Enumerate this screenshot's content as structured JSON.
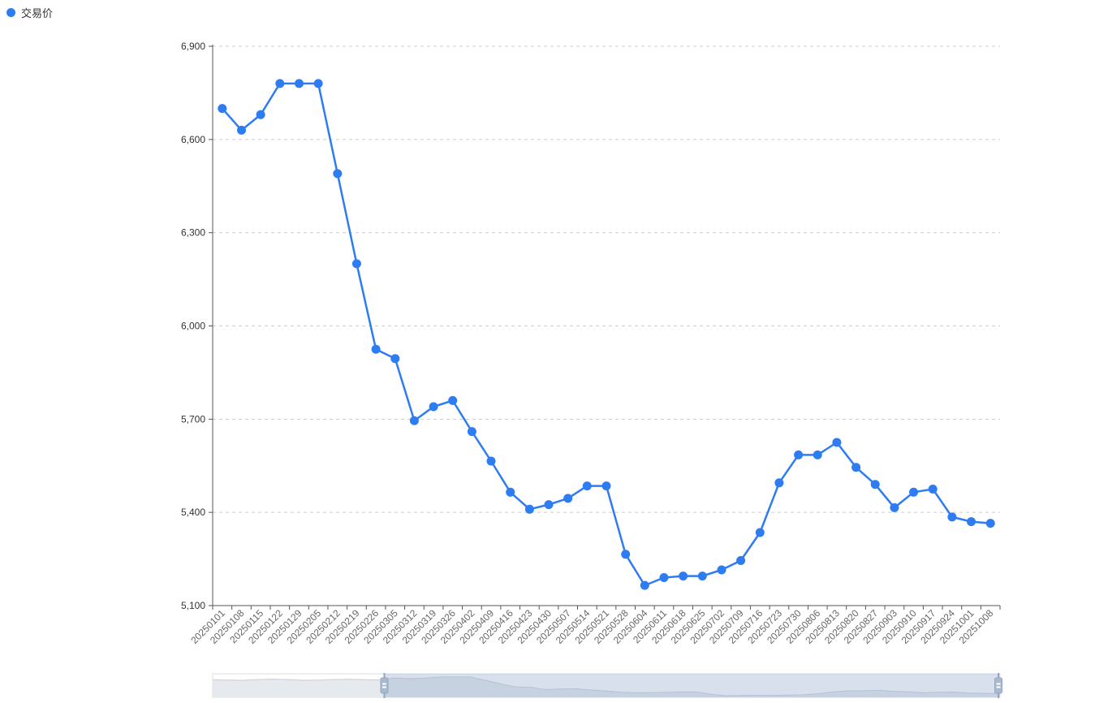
{
  "legend": {
    "label": "交易价",
    "color": "#2e7cf2"
  },
  "chart_data": {
    "type": "line",
    "title": "",
    "xlabel": "",
    "ylabel": "",
    "x": [
      "20250101",
      "20250108",
      "20250115",
      "20250122",
      "20250129",
      "20250205",
      "20250212",
      "20250219",
      "20250226",
      "20250305",
      "20250312",
      "20250319",
      "20250326",
      "20250402",
      "20250409",
      "20250416",
      "20250423",
      "20250430",
      "20250507",
      "20250514",
      "20250521",
      "20250528",
      "20250604",
      "20250611",
      "20250618",
      "20250625",
      "20250702",
      "20250709",
      "20250716",
      "20250723",
      "20250730",
      "20250806",
      "20250813",
      "20250820",
      "20250827",
      "20250903",
      "20250910",
      "20250917",
      "20250924",
      "20251001",
      "20251008"
    ],
    "series": [
      {
        "name": "交易价",
        "values": [
          6700,
          6630,
          6680,
          6780,
          6780,
          6780,
          6490,
          6200,
          5925,
          5895,
          5695,
          5740,
          5760,
          5660,
          5565,
          5465,
          5410,
          5425,
          5445,
          5485,
          5485,
          5265,
          5165,
          5190,
          5195,
          5195,
          5215,
          5245,
          5335,
          5495,
          5585,
          5585,
          5625,
          5545,
          5490,
          5415,
          5465,
          5475,
          5385,
          5370,
          5365
        ]
      }
    ],
    "ylim": [
      5100,
      6900
    ],
    "ytick_interval": 300,
    "grid": "horizontal-dashed",
    "legend_position": "top-left",
    "line_color": "#2e7cf2",
    "gridline_color": "#cccccc",
    "axis_line_color": "#555555",
    "y_label_color": "#333333",
    "x_label_color": "#666666",
    "x_label_rotation": 45
  },
  "datazoom": {
    "start_percent": 21.8,
    "end_percent": 100,
    "preview_pre_values": [
      6540,
      6520,
      6500,
      6560,
      6600,
      6560,
      6500,
      6510,
      6560,
      6580,
      6550,
      6530
    ],
    "track_fill": "#ffffff",
    "track_border": "#d9dde4",
    "preview_fill": "#e6e9ee",
    "preview_stroke": "#c8cdd6",
    "selection_overlay": "rgba(151,173,205,0.38)",
    "handle_fill": "#a9b9ce",
    "handle_stroke": "#93a7c1"
  }
}
